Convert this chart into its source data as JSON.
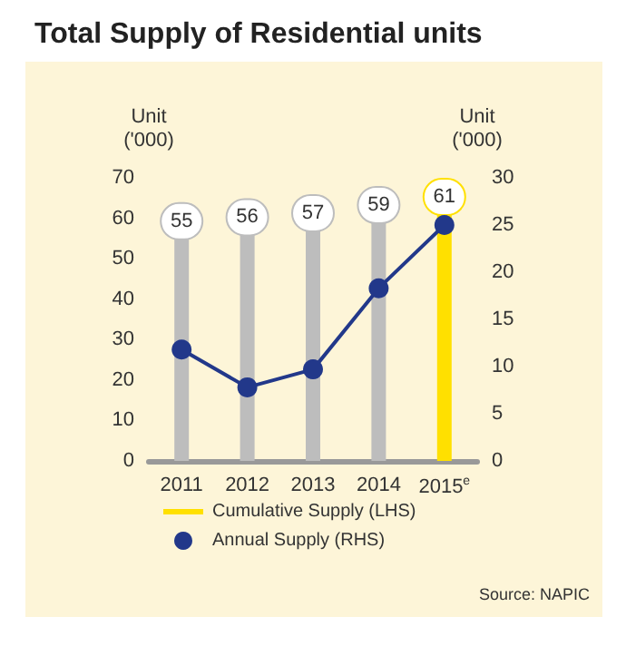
{
  "chart_data": {
    "type": "bar",
    "title": "Total Supply of Residential units",
    "categories": [
      "2011",
      "2012",
      "2013",
      "2014",
      "2015$^{e}$"
    ],
    "ylabel": "Unit\n('000)",
    "y2label": "Unit\n('000)",
    "series": [
      {
        "name": "Cumulative Supply (LHS)",
        "color": "#ffe000",
        "colors": [
          "#bdbdbd",
          "#bdbdbd",
          "#bdbdbd",
          "#bdbdbd",
          "#ffe000"
        ],
        "values": [
          55,
          56,
          57,
          59,
          61
        ],
        "value_labels": [
          "55",
          "56",
          "57",
          "59",
          "61"
        ]
      },
      {
        "name": "Annual Supply (RHS)",
        "type": "line",
        "axis": "y2",
        "color": "#22388a",
        "values": [
          11.8,
          7.8,
          9.7,
          18.3,
          25
        ]
      }
    ],
    "ylim": [
      0,
      70
    ],
    "yticks": [
      0,
      10,
      20,
      30,
      40,
      50,
      60,
      70
    ],
    "y2lim": [
      0,
      30
    ],
    "y2ticks": [
      0,
      5,
      10,
      15,
      20,
      25,
      30
    ],
    "marker": "circle",
    "line_style": "solid",
    "grid": false,
    "legend": "bottom",
    "annotations": [
      "Source: NAPIC"
    ]
  }
}
